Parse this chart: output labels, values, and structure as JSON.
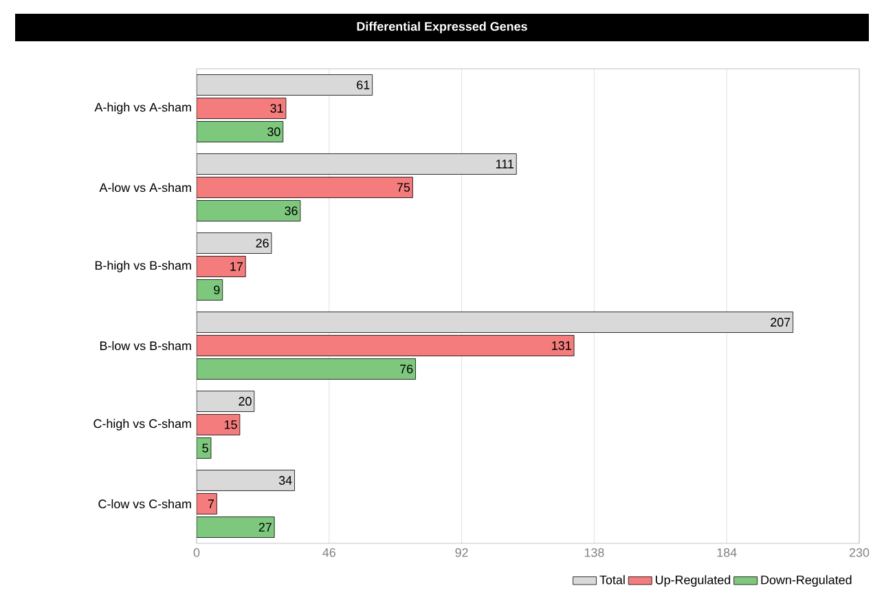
{
  "chart_data": {
    "type": "bar",
    "orientation": "horizontal",
    "title": "Differential Expressed Genes",
    "categories": [
      "A-high vs A-sham",
      "A-low vs A-sham",
      "B-high vs B-sham",
      "B-low vs B-sham",
      "C-high vs C-sham",
      "C-low vs C-sham"
    ],
    "series": [
      {
        "name": "Total",
        "color": "#d9d9d9",
        "values": [
          61,
          111,
          26,
          207,
          20,
          34
        ]
      },
      {
        "name": "Up-Regulated",
        "color": "#f47c7c",
        "values": [
          31,
          75,
          17,
          131,
          15,
          7
        ]
      },
      {
        "name": "Down-Regulated",
        "color": "#7ec87e",
        "values": [
          30,
          36,
          9,
          76,
          5,
          27
        ]
      }
    ],
    "xlim": [
      0,
      230
    ],
    "xticks": [
      0,
      46,
      92,
      138,
      184,
      230
    ],
    "grid": "x",
    "legend": "bottom right",
    "data_labels": true
  }
}
